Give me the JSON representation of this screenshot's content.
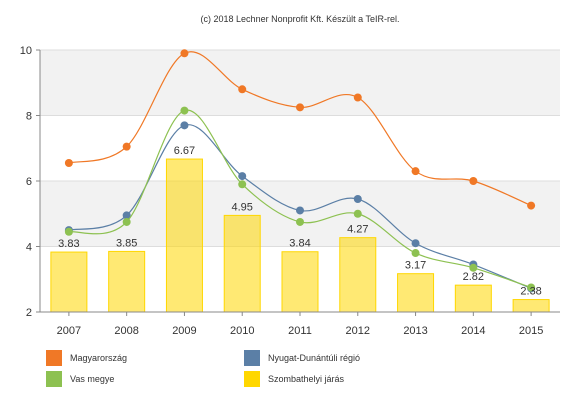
{
  "chart_data": {
    "type": "bar",
    "title": "(c) 2018 Lechner Nonprofit Kft. Készült a TeIR-rel.",
    "categories": [
      "2007",
      "2008",
      "2009",
      "2010",
      "2011",
      "2012",
      "2013",
      "2014",
      "2015"
    ],
    "ylim": [
      2,
      10
    ],
    "yticks": [
      2,
      4,
      6,
      8,
      10
    ],
    "grid": "horizontal bands",
    "legend_position": "bottom",
    "series": [
      {
        "name": "Szombathelyi járás",
        "type": "bar",
        "color": "#ffd700",
        "values": [
          3.83,
          3.85,
          6.67,
          4.95,
          3.84,
          4.27,
          3.17,
          2.82,
          2.38
        ],
        "labels": [
          "3.83",
          "3.85",
          "6.67",
          "4.95",
          "3.84",
          "4.27",
          "3.17",
          "2.82",
          "2.38"
        ]
      },
      {
        "name": "Magyarország",
        "type": "line",
        "color": "#f07826",
        "values": [
          6.55,
          7.05,
          9.9,
          8.8,
          8.25,
          8.55,
          6.3,
          6.0,
          5.25
        ]
      },
      {
        "name": "Nyugat-Dunántúli régió",
        "type": "line",
        "color": "#5b7fa6",
        "values": [
          4.5,
          4.95,
          7.7,
          6.15,
          5.1,
          5.45,
          4.1,
          3.45,
          2.72
        ]
      },
      {
        "name": "Vas megye",
        "type": "line",
        "color": "#8dc151",
        "values": [
          4.45,
          4.75,
          8.15,
          5.9,
          4.75,
          5.0,
          3.8,
          3.35,
          2.75
        ]
      }
    ]
  },
  "legend": [
    {
      "label": "Magyarország",
      "color": "#f07826"
    },
    {
      "label": "Nyugat-Dunántúli régió",
      "color": "#5b7fa6"
    },
    {
      "label": "Vas megye",
      "color": "#8dc151"
    },
    {
      "label": "Szombathelyi járás",
      "color": "#ffd700"
    }
  ]
}
